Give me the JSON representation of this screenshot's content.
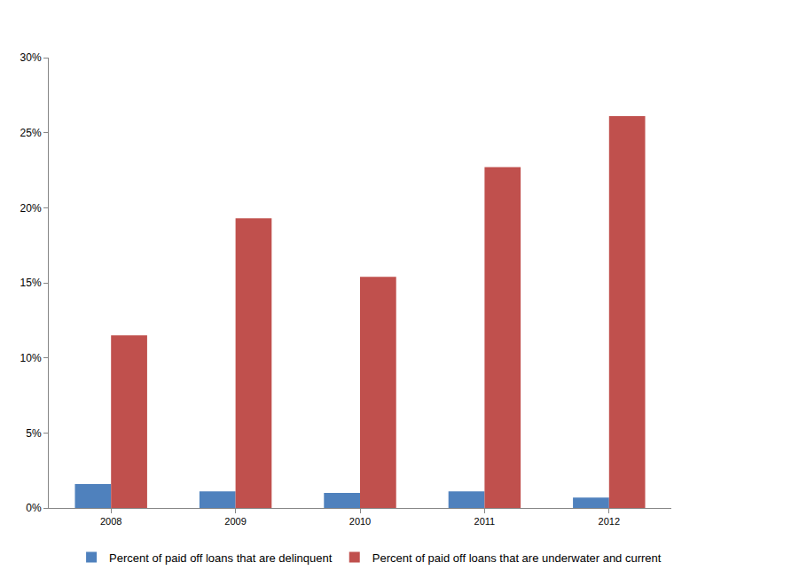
{
  "chart_data": {
    "type": "bar",
    "categories": [
      "2008",
      "2009",
      "2010",
      "2011",
      "2012"
    ],
    "series": [
      {
        "name": "Percent of paid off loans that are delinquent",
        "color": "#4f81bd",
        "values": [
          1.6,
          1.1,
          1.0,
          1.1,
          0.7
        ]
      },
      {
        "name": "Percent of paid off loans that are underwater and current",
        "color": "#c0504d",
        "values": [
          11.5,
          19.3,
          15.4,
          22.7,
          26.1
        ]
      }
    ],
    "ylim": [
      0,
      30
    ],
    "yticks": [
      {
        "value": 0,
        "label": "0%"
      },
      {
        "value": 5,
        "label": "5%"
      },
      {
        "value": 10,
        "label": "10%"
      },
      {
        "value": 15,
        "label": "15%"
      },
      {
        "value": 20,
        "label": "20%"
      },
      {
        "value": 25,
        "label": "25%"
      },
      {
        "value": 30,
        "label": "30%"
      }
    ],
    "grid": false,
    "legend": "bottom"
  }
}
